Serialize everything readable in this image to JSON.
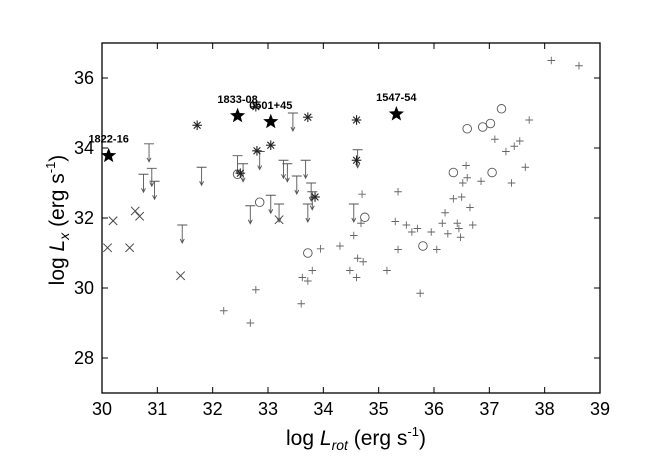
{
  "chart_data": {
    "type": "scatter",
    "title": "",
    "xlabel": {
      "prefix": "log ",
      "symbol": "L",
      "sub": "rot",
      "unit": " (erg s",
      "exp": "-1",
      "close": ")"
    },
    "ylabel": {
      "prefix": "log ",
      "symbol": "L",
      "sub": "x",
      "unit": " (erg s",
      "exp": "-1",
      "close": ")"
    },
    "xlim": [
      30,
      39
    ],
    "ylim": [
      27,
      37
    ],
    "xticks": [
      30,
      31,
      32,
      33,
      34,
      35,
      36,
      37,
      38,
      39
    ],
    "yticks": [
      28,
      30,
      32,
      34,
      36
    ],
    "grid": false,
    "series": [
      {
        "marker": "star",
        "points": [
          {
            "x": 30.12,
            "y": 33.78,
            "label": "1822-16"
          },
          {
            "x": 32.45,
            "y": 34.92,
            "label": "1833-08"
          },
          {
            "x": 33.05,
            "y": 34.75,
            "label": "0501+45"
          },
          {
            "x": 35.32,
            "y": 34.97,
            "label": "1547-54"
          }
        ]
      },
      {
        "marker": "asterisk",
        "points": [
          {
            "x": 31.72,
            "y": 34.65
          },
          {
            "x": 32.78,
            "y": 35.18
          },
          {
            "x": 33.72,
            "y": 34.88
          },
          {
            "x": 34.6,
            "y": 34.8
          },
          {
            "x": 33.05,
            "y": 34.08
          },
          {
            "x": 32.8,
            "y": 33.92
          },
          {
            "x": 34.6,
            "y": 33.65
          },
          {
            "x": 33.85,
            "y": 32.6
          },
          {
            "x": 32.5,
            "y": 33.28
          }
        ]
      },
      {
        "marker": "x",
        "points": [
          {
            "x": 30.1,
            "y": 31.15
          },
          {
            "x": 30.2,
            "y": 31.92
          },
          {
            "x": 30.5,
            "y": 31.15
          },
          {
            "x": 30.6,
            "y": 32.2
          },
          {
            "x": 30.68,
            "y": 32.05
          },
          {
            "x": 31.42,
            "y": 30.35
          },
          {
            "x": 33.2,
            "y": 31.95
          }
        ]
      },
      {
        "marker": "circle",
        "points": [
          {
            "x": 32.45,
            "y": 33.25
          },
          {
            "x": 32.85,
            "y": 32.45
          },
          {
            "x": 33.72,
            "y": 31.0
          },
          {
            "x": 34.75,
            "y": 32.02
          },
          {
            "x": 35.8,
            "y": 31.2
          },
          {
            "x": 36.35,
            "y": 33.3
          },
          {
            "x": 36.6,
            "y": 34.55
          },
          {
            "x": 36.88,
            "y": 34.6
          },
          {
            "x": 37.02,
            "y": 34.7
          },
          {
            "x": 37.22,
            "y": 35.12
          },
          {
            "x": 37.05,
            "y": 33.3
          }
        ]
      },
      {
        "marker": "plus",
        "points": [
          {
            "x": 32.2,
            "y": 29.35
          },
          {
            "x": 32.68,
            "y": 29.0
          },
          {
            "x": 32.78,
            "y": 29.95
          },
          {
            "x": 33.6,
            "y": 29.55
          },
          {
            "x": 33.62,
            "y": 30.3
          },
          {
            "x": 33.72,
            "y": 30.2
          },
          {
            "x": 33.8,
            "y": 30.5
          },
          {
            "x": 33.95,
            "y": 31.12
          },
          {
            "x": 34.3,
            "y": 31.2
          },
          {
            "x": 34.48,
            "y": 30.5
          },
          {
            "x": 34.6,
            "y": 30.3
          },
          {
            "x": 34.62,
            "y": 30.85
          },
          {
            "x": 34.72,
            "y": 30.75
          },
          {
            "x": 34.55,
            "y": 31.5
          },
          {
            "x": 34.68,
            "y": 31.85
          },
          {
            "x": 34.7,
            "y": 32.68
          },
          {
            "x": 35.15,
            "y": 30.5
          },
          {
            "x": 35.35,
            "y": 31.1
          },
          {
            "x": 35.3,
            "y": 31.9
          },
          {
            "x": 35.35,
            "y": 32.75
          },
          {
            "x": 35.5,
            "y": 31.8
          },
          {
            "x": 35.6,
            "y": 31.6
          },
          {
            "x": 35.7,
            "y": 31.7
          },
          {
            "x": 35.75,
            "y": 29.85
          },
          {
            "x": 35.95,
            "y": 31.6
          },
          {
            "x": 36.05,
            "y": 31.1
          },
          {
            "x": 36.15,
            "y": 31.85
          },
          {
            "x": 36.2,
            "y": 32.15
          },
          {
            "x": 36.25,
            "y": 31.55
          },
          {
            "x": 36.35,
            "y": 32.55
          },
          {
            "x": 36.42,
            "y": 31.85
          },
          {
            "x": 36.45,
            "y": 31.7
          },
          {
            "x": 36.48,
            "y": 31.45
          },
          {
            "x": 36.5,
            "y": 32.6
          },
          {
            "x": 36.52,
            "y": 33.0
          },
          {
            "x": 36.58,
            "y": 33.5
          },
          {
            "x": 36.6,
            "y": 33.15
          },
          {
            "x": 36.65,
            "y": 32.3
          },
          {
            "x": 36.7,
            "y": 31.8
          },
          {
            "x": 36.85,
            "y": 33.05
          },
          {
            "x": 37.1,
            "y": 34.25
          },
          {
            "x": 37.3,
            "y": 33.9
          },
          {
            "x": 37.4,
            "y": 33.0
          },
          {
            "x": 37.45,
            "y": 34.05
          },
          {
            "x": 37.55,
            "y": 34.2
          },
          {
            "x": 37.65,
            "y": 33.45
          },
          {
            "x": 37.72,
            "y": 34.8
          },
          {
            "x": 38.12,
            "y": 36.5
          },
          {
            "x": 38.62,
            "y": 36.35
          }
        ]
      },
      {
        "marker": "upper-limit",
        "points": [
          {
            "x": 30.85,
            "y": 34.12
          },
          {
            "x": 30.75,
            "y": 33.25
          },
          {
            "x": 30.9,
            "y": 33.42
          },
          {
            "x": 30.95,
            "y": 33.05
          },
          {
            "x": 31.45,
            "y": 31.8
          },
          {
            "x": 31.8,
            "y": 33.45
          },
          {
            "x": 32.45,
            "y": 33.78
          },
          {
            "x": 32.55,
            "y": 33.55
          },
          {
            "x": 32.68,
            "y": 32.35
          },
          {
            "x": 32.85,
            "y": 33.9
          },
          {
            "x": 33.05,
            "y": 32.65
          },
          {
            "x": 33.2,
            "y": 32.4
          },
          {
            "x": 33.28,
            "y": 33.65
          },
          {
            "x": 33.35,
            "y": 33.55
          },
          {
            "x": 33.45,
            "y": 35.0
          },
          {
            "x": 33.52,
            "y": 33.2
          },
          {
            "x": 33.68,
            "y": 33.65
          },
          {
            "x": 33.78,
            "y": 33.0
          },
          {
            "x": 33.8,
            "y": 32.75
          },
          {
            "x": 33.72,
            "y": 32.4
          },
          {
            "x": 34.55,
            "y": 32.4
          },
          {
            "x": 34.62,
            "y": 33.95
          }
        ]
      }
    ]
  }
}
